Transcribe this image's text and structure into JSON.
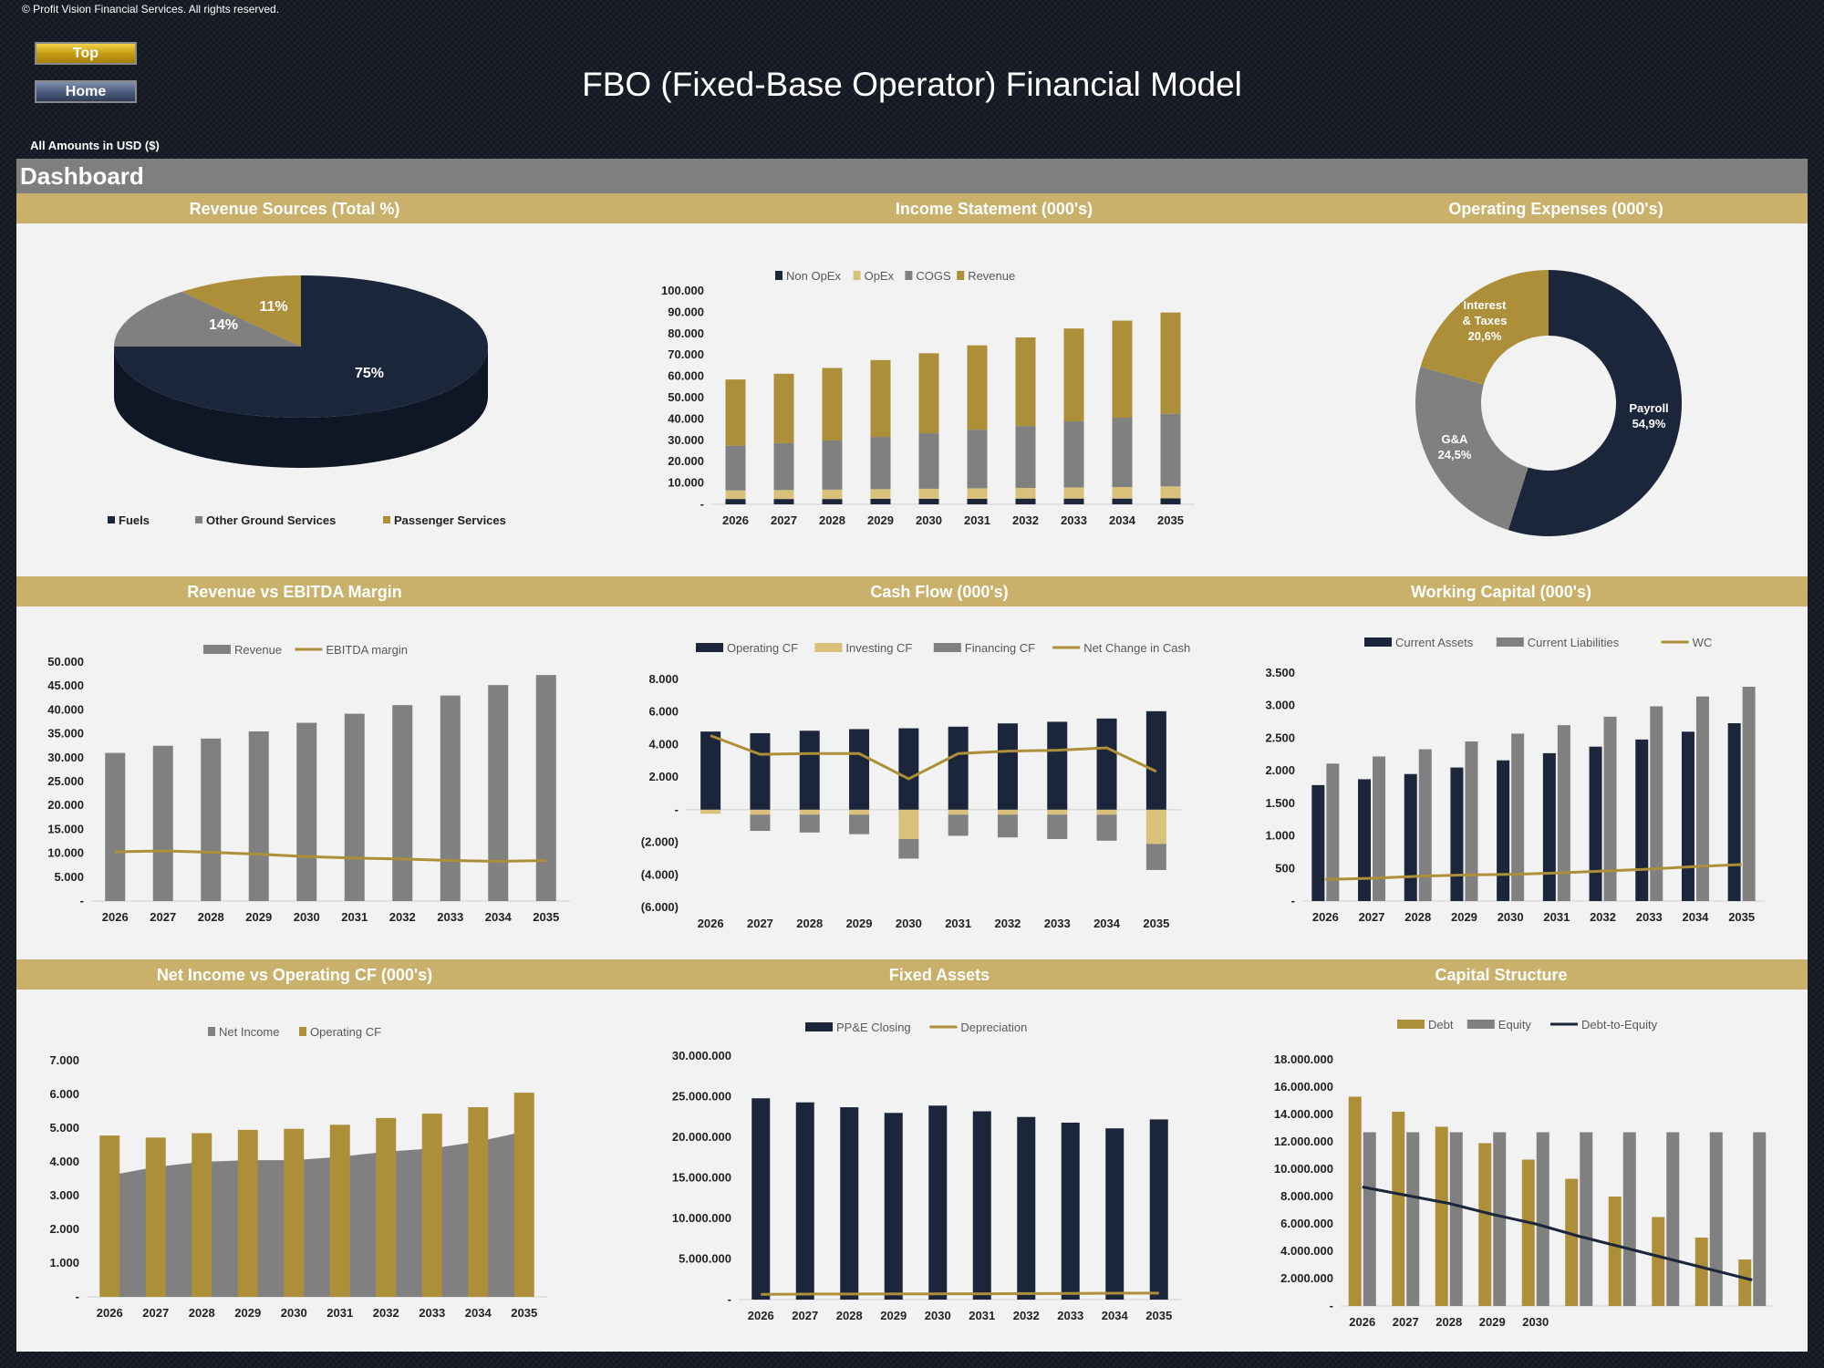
{
  "copyright": "© Profit Vision Financial Services. All rights reserved.",
  "buttons": {
    "top": "Top",
    "home": "Home"
  },
  "title": "FBO (Fixed-Base Operator) Financial Model",
  "amounts": "All Amounts in  USD ($)",
  "dashboard_title": "Dashboard",
  "colors": {
    "navy": "#1b263b",
    "gold": "#ad8f3a",
    "tan": "#d9c17c",
    "gray": "#808080",
    "header": "#c9b06b"
  },
  "panels": {
    "revenue_sources": "Revenue Sources (Total %)",
    "income_statement": "Income Statement (000's)",
    "operating_expenses": "Operating Expenses (000's)",
    "revenue_ebitda": "Revenue vs EBITDA Margin",
    "cash_flow": "Cash Flow (000's)",
    "working_capital": "Working Capital (000's)",
    "net_income_ocf": "Net Income vs Operating CF (000's)",
    "fixed_assets": "Fixed Assets",
    "capital_structure": "Capital Structure"
  },
  "chart_data": [
    {
      "id": "revenue_sources",
      "type": "pie",
      "title": "Revenue Sources (Total %)",
      "categories": [
        "Fuels",
        "Other Ground Services",
        "Passenger Services"
      ],
      "values": [
        75,
        14,
        11
      ],
      "labels": [
        "75%",
        "14%",
        "11%"
      ]
    },
    {
      "id": "income_statement",
      "type": "bar",
      "stacked": true,
      "title": "Income Statement (000's)",
      "categories": [
        "2026",
        "2027",
        "2028",
        "2029",
        "2030",
        "2031",
        "2032",
        "2033",
        "2034",
        "2035"
      ],
      "series": [
        {
          "name": "Non OpEx",
          "values": [
            2500,
            2500,
            2500,
            2600,
            2600,
            2600,
            2700,
            2700,
            2700,
            2800
          ]
        },
        {
          "name": "OpEx",
          "values": [
            4000,
            4200,
            4400,
            4500,
            4700,
            4900,
            5000,
            5200,
            5400,
            5600
          ]
        },
        {
          "name": "COGS",
          "values": [
            21000,
            22000,
            23000,
            24500,
            26000,
            27500,
            29000,
            31000,
            32500,
            34000
          ]
        },
        {
          "name": "Revenue",
          "values": [
            31000,
            32500,
            34000,
            36000,
            37500,
            39500,
            41500,
            43500,
            45500,
            47500
          ]
        }
      ],
      "ylim": [
        0,
        100000
      ],
      "yticks": [
        "-",
        "10.000",
        "20.000",
        "30.000",
        "40.000",
        "50.000",
        "60.000",
        "70.000",
        "80.000",
        "90.000",
        "100.000"
      ]
    },
    {
      "id": "operating_expenses",
      "type": "pie",
      "donut": true,
      "title": "Operating Expenses (000's)",
      "categories": [
        "Payroll",
        "G&A",
        "Interest & Taxes"
      ],
      "values": [
        54.9,
        24.5,
        20.6
      ],
      "labels": [
        "54,9%",
        "24,5%",
        "20,6%"
      ]
    },
    {
      "id": "revenue_ebitda",
      "type": "bar+line",
      "title": "Revenue vs EBITDA Margin",
      "categories": [
        "2026",
        "2027",
        "2028",
        "2029",
        "2030",
        "2031",
        "2032",
        "2033",
        "2034",
        "2035"
      ],
      "series": [
        {
          "name": "Revenue",
          "type": "bar",
          "values": [
            31000,
            32500,
            34000,
            35500,
            37300,
            39200,
            41000,
            43000,
            45200,
            47300
          ]
        },
        {
          "name": "EBITDA margin",
          "type": "line",
          "values": [
            10300,
            10500,
            10200,
            9800,
            9300,
            9000,
            8800,
            8500,
            8300,
            8500
          ]
        }
      ],
      "ylim": [
        0,
        50000
      ],
      "yticks": [
        "-",
        "5.000",
        "10.000",
        "15.000",
        "20.000",
        "25.000",
        "30.000",
        "35.000",
        "40.000",
        "45.000",
        "50.000"
      ]
    },
    {
      "id": "cash_flow",
      "type": "bar+line",
      "stacked": true,
      "title": "Cash Flow (000's)",
      "categories": [
        "2026",
        "2027",
        "2028",
        "2029",
        "2030",
        "2031",
        "2032",
        "2033",
        "2034",
        "2035"
      ],
      "series": [
        {
          "name": "Operating CF",
          "type": "bar",
          "values": [
            4800,
            4700,
            4850,
            4950,
            5000,
            5100,
            5300,
            5400,
            5600,
            6050
          ]
        },
        {
          "name": "Investing CF",
          "type": "bar",
          "values": [
            -250,
            -300,
            -300,
            -300,
            -1800,
            -300,
            -300,
            -300,
            -300,
            -2100
          ]
        },
        {
          "name": "Financing CF",
          "type": "bar",
          "values": [
            0,
            -1000,
            -1100,
            -1200,
            -1200,
            -1300,
            -1400,
            -1500,
            -1600,
            -1600
          ]
        },
        {
          "name": "Net Change in Cash",
          "type": "line",
          "values": [
            4550,
            3400,
            3450,
            3450,
            1900,
            3450,
            3600,
            3650,
            3800,
            2350
          ]
        }
      ],
      "ylim": [
        -6000,
        8000
      ],
      "yticks": [
        "(6.000)",
        "(4.000)",
        "(2.000)",
        "-",
        "2.000",
        "4.000",
        "6.000",
        "8.000"
      ]
    },
    {
      "id": "working_capital",
      "type": "bar+line",
      "title": "Working Capital (000's)",
      "categories": [
        "2026",
        "2027",
        "2028",
        "2029",
        "2030",
        "2031",
        "2032",
        "2033",
        "2034",
        "2035"
      ],
      "series": [
        {
          "name": "Current Assets",
          "type": "bar",
          "values": [
            1780,
            1870,
            1950,
            2050,
            2160,
            2270,
            2370,
            2480,
            2600,
            2730
          ]
        },
        {
          "name": "Current Liabilities",
          "type": "bar",
          "values": [
            2110,
            2220,
            2330,
            2450,
            2570,
            2700,
            2830,
            2990,
            3140,
            3290
          ]
        },
        {
          "name": "WC",
          "type": "line",
          "values": [
            330,
            350,
            380,
            400,
            410,
            430,
            460,
            490,
            530,
            560
          ]
        }
      ],
      "ylim": [
        0,
        3500
      ],
      "yticks": [
        "-",
        "500",
        "1.000",
        "1.500",
        "2.000",
        "2.500",
        "3.000",
        "3.500"
      ]
    },
    {
      "id": "net_income_ocf",
      "type": "area+bar",
      "title": "Net Income vs Operating CF (000's)",
      "categories": [
        "2026",
        "2027",
        "2028",
        "2029",
        "2030",
        "2031",
        "2032",
        "2033",
        "2034",
        "2035"
      ],
      "series": [
        {
          "name": "Net Income",
          "type": "area",
          "values": [
            3600,
            3850,
            4000,
            4050,
            4050,
            4150,
            4300,
            4400,
            4600,
            4900
          ]
        },
        {
          "name": "Operating CF",
          "type": "bar",
          "values": [
            4780,
            4720,
            4850,
            4950,
            4980,
            5100,
            5300,
            5430,
            5620,
            6050
          ]
        }
      ],
      "ylim": [
        0,
        7000
      ],
      "yticks": [
        "-",
        "1.000",
        "2.000",
        "3.000",
        "4.000",
        "5.000",
        "6.000",
        "7.000"
      ]
    },
    {
      "id": "fixed_assets",
      "type": "bar+line",
      "title": "Fixed Assets",
      "categories": [
        "2026",
        "2027",
        "2028",
        "2029",
        "2030",
        "2031",
        "2032",
        "2033",
        "2034",
        "2035"
      ],
      "series": [
        {
          "name": "PP&E Closing",
          "type": "bar",
          "values": [
            24800000,
            24300000,
            23700000,
            23000000,
            23900000,
            23200000,
            22500000,
            21800000,
            21100000,
            22200000
          ]
        },
        {
          "name": "Depreciation",
          "type": "line",
          "values": [
            650000,
            680000,
            690000,
            700000,
            710000,
            720000,
            740000,
            760000,
            780000,
            800000
          ]
        }
      ],
      "ylim": [
        0,
        30000000
      ],
      "yticks": [
        "-",
        "5.000.000",
        "10.000.000",
        "15.000.000",
        "20.000.000",
        "25.000.000",
        "30.000.000"
      ]
    },
    {
      "id": "capital_structure",
      "type": "bar+line",
      "title": "Capital Structure",
      "categories": [
        "2026",
        "2027",
        "2028",
        "2029",
        "2030",
        "",
        "",
        "",
        "",
        ""
      ],
      "series": [
        {
          "name": "Debt",
          "type": "bar",
          "values": [
            15300000,
            14200000,
            13100000,
            11900000,
            10700000,
            9300000,
            8000000,
            6500000,
            5000000,
            3400000
          ]
        },
        {
          "name": "Equity",
          "type": "bar",
          "values": [
            12700000,
            12700000,
            12700000,
            12700000,
            12700000,
            12700000,
            12700000,
            12700000,
            12700000,
            12700000
          ]
        },
        {
          "name": "Debt-to-Equity",
          "type": "line",
          "values": [
            8700000,
            8100000,
            7500000,
            6700000,
            6000000,
            5100000,
            4300000,
            3500000,
            2700000,
            1900000
          ]
        }
      ],
      "ylim": [
        0,
        18000000
      ],
      "yticks": [
        "-",
        "2.000.000",
        "4.000.000",
        "6.000.000",
        "8.000.000",
        "10.000.000",
        "12.000.000",
        "14.000.000",
        "16.000.000",
        "18.000.000"
      ]
    }
  ]
}
